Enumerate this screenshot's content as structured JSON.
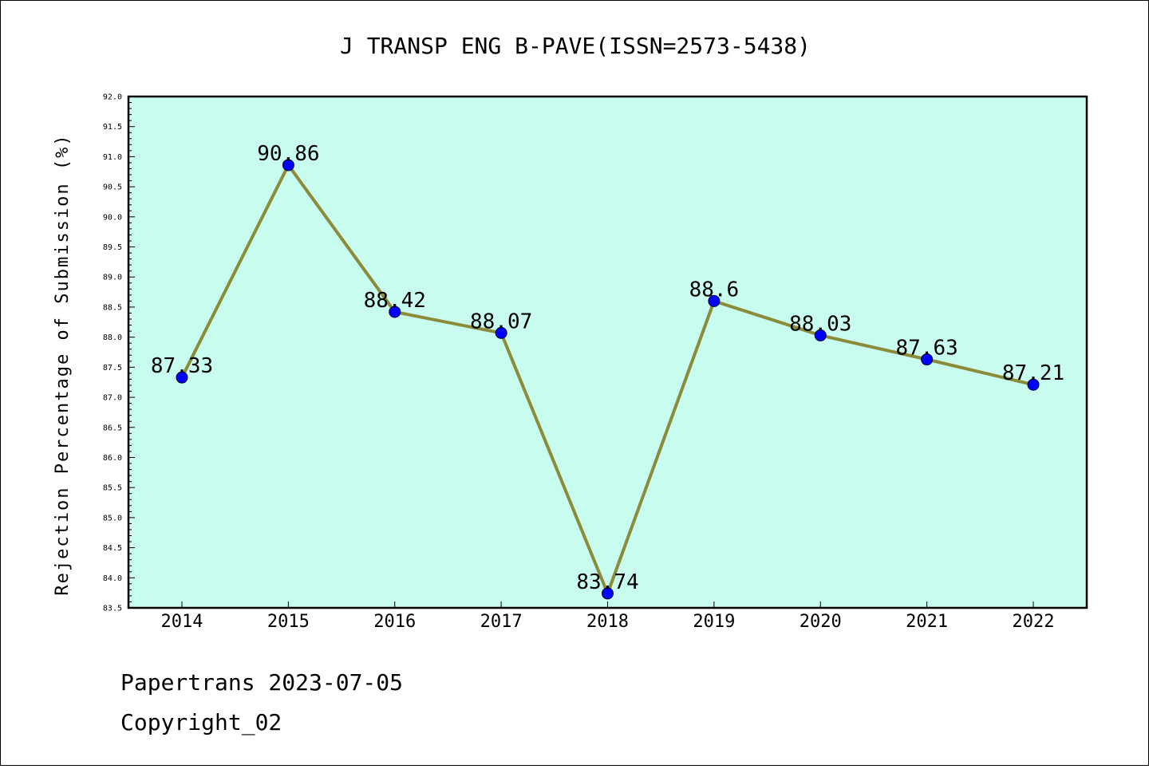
{
  "chart_data": {
    "type": "line",
    "title": "J TRANSP ENG B-PAVE(ISSN=2573-5438)",
    "xlabel": "",
    "ylabel": "Rejection Percentage of Submission (%)",
    "categories": [
      "2014",
      "2015",
      "2016",
      "2017",
      "2018",
      "2019",
      "2020",
      "2021",
      "2022"
    ],
    "series": [
      {
        "values": [
          87.33,
          90.86,
          88.42,
          88.07,
          83.74,
          88.6,
          88.03,
          87.63,
          87.21
        ],
        "labels": [
          "87.33",
          "90.86",
          "88.42",
          "88.07",
          "83.74",
          "88.6",
          "88.03",
          "87.63",
          "87.21"
        ]
      }
    ],
    "ylim": [
      83.5,
      92.0
    ],
    "yticks": [
      "83.5",
      "84.0",
      "84.5",
      "85.0",
      "85.5",
      "86.0",
      "86.5",
      "87.0",
      "87.5",
      "88.0",
      "88.5",
      "89.0",
      "89.5",
      "90.0",
      "90.5",
      "91.0",
      "91.5",
      "92.0"
    ],
    "grid": false,
    "colors": {
      "plot_background": "#c8fcef",
      "line": "#8b8b3a",
      "marker": "#0000ff"
    }
  },
  "footer": {
    "line1": "Papertrans 2023-07-05",
    "line2": "Copyright_02"
  }
}
